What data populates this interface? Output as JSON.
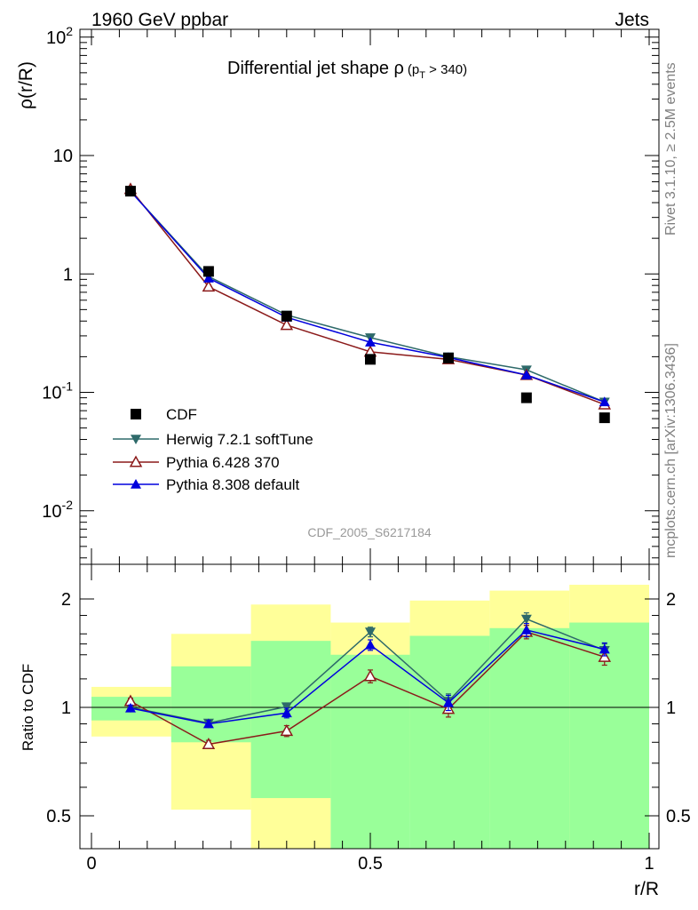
{
  "header": {
    "left": "1960 GeV ppbar",
    "right": "Jets"
  },
  "side_text": {
    "rivet": "Rivet 3.1.10, ≥ 2.5M events",
    "mcplots": "mcplots.cern.ch [arXiv:1306.3436]"
  },
  "analysis_id": "CDF_2005_S6217184",
  "main_title": {
    "text": "Differential jet shape ρ",
    "sub": "(p",
    "sub2": "T",
    "sub3": " > 340)"
  },
  "y_label": "ρ(r/R)",
  "ratio_y_label": "Ratio to CDF",
  "x_label": "r/R",
  "legend": [
    "CDF",
    "Herwig 7.2.1 softTune",
    "Pythia 6.428 370",
    "Pythia 8.308 default"
  ],
  "colors": {
    "cdf": "#000000",
    "herwig": "#2e6a6a",
    "py6": "#8b1a1a",
    "py8": "#0000dd",
    "band_yellow": "#ffff99",
    "band_green": "#99ff99"
  },
  "chart_data": [
    {
      "type": "line",
      "title": "Differential jet shape ρ (p_T > 340)",
      "xlabel": "r/R",
      "ylabel": "ρ(r/R)",
      "xlim": [
        -0.025,
        1.025
      ],
      "ylim": [
        0.003,
        130
      ],
      "y_scale": "log",
      "x_ticks": [
        "0",
        "0.5",
        "1"
      ],
      "y_ticks": [
        "10^-2",
        "10^-1",
        "1",
        "10",
        "10^2"
      ],
      "legend_position": "bottom-left",
      "x": [
        0.07,
        0.21,
        0.35,
        0.5,
        0.64,
        0.78,
        0.92
      ],
      "series": [
        {
          "name": "CDF",
          "values": [
            5.0,
            1.05,
            0.44,
            0.19,
            0.195,
            0.09,
            0.061
          ]
        },
        {
          "name": "Herwig 7.2.1 softTune",
          "values": [
            5.0,
            0.95,
            0.45,
            0.29,
            0.2,
            0.155,
            0.083
          ]
        },
        {
          "name": "Pythia 6.428 370",
          "values": [
            5.2,
            0.78,
            0.37,
            0.22,
            0.19,
            0.14,
            0.079
          ]
        },
        {
          "name": "Pythia 8.308 default",
          "values": [
            5.0,
            0.92,
            0.43,
            0.265,
            0.197,
            0.14,
            0.083
          ]
        }
      ]
    },
    {
      "type": "line",
      "ylabel": "Ratio to CDF",
      "xlabel": "r/R",
      "xlim": [
        -0.025,
        1.025
      ],
      "ylim": [
        0.35,
        2.25
      ],
      "y_ticks": [
        "0.5",
        "1",
        "2"
      ],
      "reference_line": 1,
      "x": [
        0.07,
        0.21,
        0.35,
        0.5,
        0.64,
        0.78,
        0.92
      ],
      "series": [
        {
          "name": "Herwig 7.2.1 softTune",
          "values": [
            1.0,
            0.905,
            1.005,
            1.62,
            1.04,
            1.76,
            1.44
          ],
          "errors": [
            0.02,
            0.02,
            0.02,
            0.05,
            0.05,
            0.07,
            0.06
          ]
        },
        {
          "name": "Pythia 6.428 370",
          "values": [
            1.04,
            0.79,
            0.86,
            1.22,
            0.99,
            1.62,
            1.38
          ],
          "errors": [
            0.02,
            0.02,
            0.03,
            0.05,
            0.05,
            0.07,
            0.07
          ]
        },
        {
          "name": "Pythia 8.308 default",
          "values": [
            0.995,
            0.9,
            0.965,
            1.49,
            1.03,
            1.64,
            1.45
          ],
          "errors": [
            0.02,
            0.02,
            0.03,
            0.05,
            0.05,
            0.07,
            0.06
          ]
        }
      ],
      "bands": {
        "x_edges": [
          0,
          0.143,
          0.286,
          0.429,
          0.571,
          0.714,
          0.857,
          1.0
        ],
        "yellow": [
          [
            0.83,
            1.14
          ],
          [
            0.52,
            1.6
          ],
          [
            0.35,
            1.93
          ],
          [
            0.72,
            1.72
          ],
          [
            0.51,
            1.98
          ],
          [
            0.37,
            2.11
          ],
          [
            0.35,
            2.19
          ]
        ],
        "green": [
          [
            0.92,
            1.07
          ],
          [
            0.8,
            1.3
          ],
          [
            0.56,
            1.53
          ],
          [
            0.35,
            1.4
          ],
          [
            0.35,
            1.58
          ],
          [
            0.35,
            1.66
          ],
          [
            0.35,
            1.72
          ]
        ]
      }
    }
  ]
}
